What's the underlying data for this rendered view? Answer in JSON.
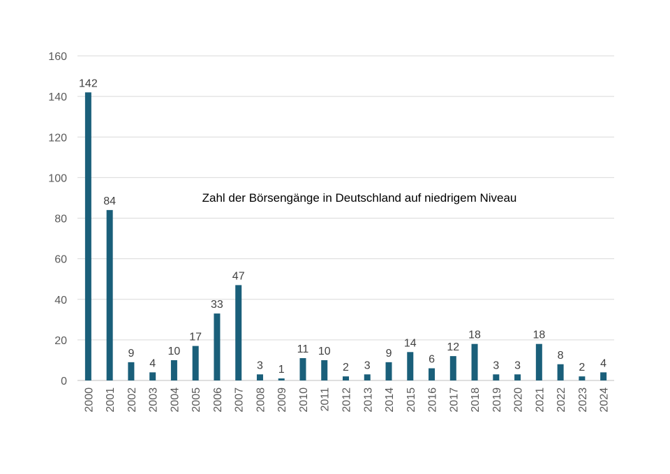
{
  "chart_data": {
    "type": "bar",
    "title": "Zahl der Börsengänge in Deutschland auf niedrigem Niveau",
    "xlabel": "",
    "ylabel": "",
    "categories": [
      "2000",
      "2001",
      "2002",
      "2003",
      "2004",
      "2005",
      "2006",
      "2007",
      "2008",
      "2009",
      "2010",
      "2011",
      "2012",
      "2013",
      "2014",
      "2015",
      "2016",
      "2017",
      "2018",
      "2019",
      "2020",
      "2021",
      "2022",
      "2023",
      "2024"
    ],
    "values": [
      142,
      84,
      9,
      4,
      10,
      17,
      33,
      47,
      3,
      1,
      11,
      10,
      2,
      3,
      9,
      14,
      6,
      12,
      18,
      3,
      3,
      18,
      8,
      2,
      4
    ],
    "ylim": [
      0,
      160
    ],
    "yticks": [
      0,
      20,
      40,
      60,
      80,
      100,
      120,
      140,
      160
    ],
    "grid": true,
    "legend": "none",
    "bar_color": "#1a5f7a"
  }
}
